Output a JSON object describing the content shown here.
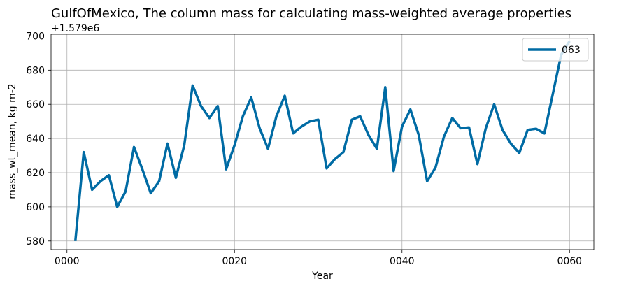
{
  "chart_data": {
    "type": "line",
    "title": "GulfOfMexico, The column mass for calculating mass-weighted average properties",
    "xlabel": "Year",
    "ylabel": "mass_wt_mean, kg m-2",
    "y_offset_label": "+1.579e6",
    "xlim": [
      -1.9,
      62.9
    ],
    "ylim": [
      575,
      701
    ],
    "xticks": [
      0,
      20,
      40,
      60
    ],
    "xtick_labels": [
      "0000",
      "0020",
      "0040",
      "0060"
    ],
    "yticks": [
      580,
      600,
      620,
      640,
      660,
      680,
      700
    ],
    "ytick_labels": [
      "580",
      "600",
      "620",
      "640",
      "660",
      "680",
      "700"
    ],
    "grid": true,
    "legend_position": "top-right",
    "series": [
      {
        "name": "063",
        "color": "#006ba4",
        "x": [
          1,
          2,
          3,
          4,
          5,
          6,
          7,
          8,
          9,
          10,
          11,
          12,
          13,
          14,
          15,
          16,
          17,
          18,
          19,
          20,
          21,
          22,
          23,
          24,
          25,
          26,
          27,
          28,
          29,
          30,
          31,
          32,
          33,
          34,
          35,
          36,
          37,
          38,
          39,
          40,
          41,
          42,
          43,
          44,
          45,
          46,
          47,
          48,
          49,
          50,
          51,
          52,
          53,
          54,
          55,
          56,
          57,
          58,
          59,
          60
        ],
        "y": [
          580,
          632,
          610,
          615,
          618.5,
          600,
          609,
          635,
          622,
          608,
          615,
          637,
          617,
          636,
          671,
          659,
          652,
          659,
          622,
          636,
          653,
          664,
          646,
          634,
          653,
          665,
          643,
          647,
          650,
          651,
          622.5,
          628,
          632,
          651,
          653,
          642,
          634,
          670,
          621,
          647,
          657,
          642,
          615,
          623,
          641,
          652,
          646,
          646.5,
          625,
          646,
          660,
          645,
          637,
          631.5,
          645,
          645.7,
          643,
          666,
          689,
          697
        ]
      }
    ]
  }
}
